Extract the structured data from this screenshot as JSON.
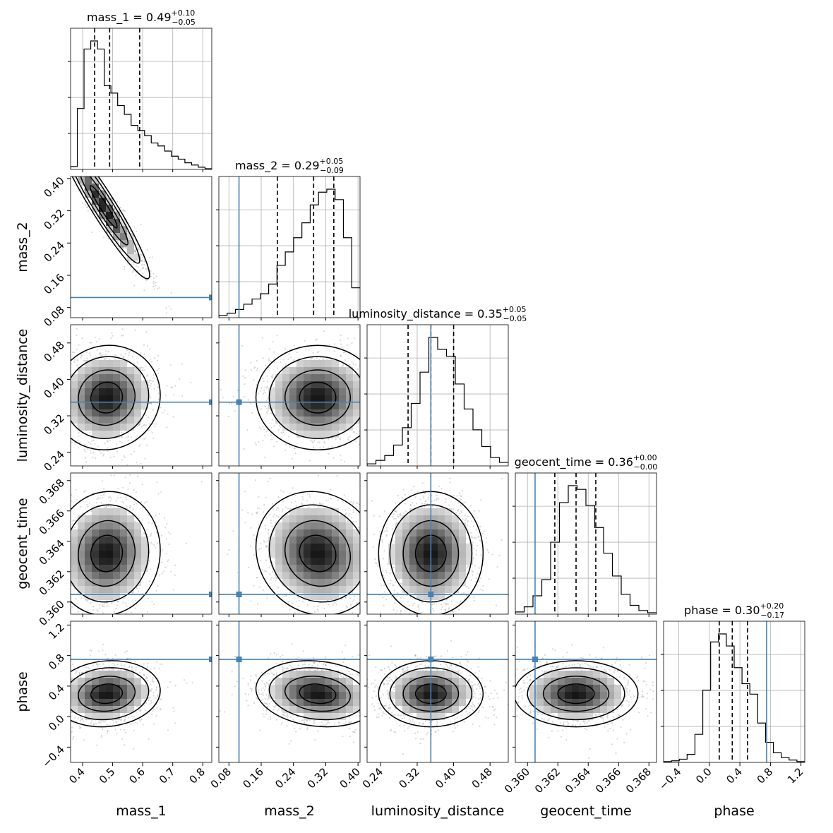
{
  "chart_data": {
    "type": "corner",
    "parameters": [
      {
        "name": "mass_1",
        "label": "mass_1",
        "range": [
          0.36,
          0.83
        ],
        "ticks": [
          "0.4",
          "0.5",
          "0.6",
          "0.7",
          "0.8"
        ],
        "tick_values": [
          0.4,
          0.5,
          0.6,
          0.7,
          0.8
        ],
        "title_main": "mass_1 = 0.49",
        "title_sup": "+0.10",
        "title_sub": "−0.05",
        "median": 0.49,
        "q_low": 0.44,
        "q_high": 0.59,
        "truth": null,
        "hist": [
          4,
          83,
          164,
          175,
          164,
          114,
          104,
          87,
          75,
          60,
          53,
          46,
          36,
          32,
          25,
          18,
          14,
          9,
          6,
          3,
          1
        ]
      },
      {
        "name": "mass_2",
        "label": "mass_2",
        "range": [
          0.055,
          0.405
        ],
        "ticks": [
          "0.08",
          "0.16",
          "0.24",
          "0.32",
          "0.40"
        ],
        "tick_values": [
          0.08,
          0.16,
          0.24,
          0.32,
          0.4
        ],
        "title_main": "mass_2 = 0.29",
        "title_sup": "+0.05",
        "title_sub": "−0.09",
        "median": 0.29,
        "q_low": 0.2,
        "q_high": 0.34,
        "truth": 0.105,
        "hist": [
          3,
          6,
          11,
          18,
          25,
          32,
          45,
          70,
          88,
          107,
          127,
          151,
          168,
          172,
          158,
          107,
          40
        ]
      },
      {
        "name": "luminosity_distance",
        "label": "luminosity_distance",
        "range": [
          0.21,
          0.52
        ],
        "ticks": [
          "0.24",
          "0.32",
          "0.40",
          "0.48"
        ],
        "tick_values": [
          0.24,
          0.32,
          0.4,
          0.48
        ],
        "title_main": "luminosity_distance = 0.35",
        "title_sup": "+0.05",
        "title_sub": "−0.05",
        "median": 0.35,
        "q_low": 0.3,
        "q_high": 0.4,
        "truth": 0.35,
        "hist": [
          3,
          8,
          15,
          30,
          55,
          90,
          135,
          185,
          168,
          158,
          118,
          82,
          52,
          28,
          12,
          5
        ]
      },
      {
        "name": "geocent_time",
        "label": "geocent_time",
        "range": [
          0.3592,
          0.3685
        ],
        "ticks": [
          "0.360",
          "0.362",
          "0.364",
          "0.366",
          "0.368"
        ],
        "tick_values": [
          0.36,
          0.362,
          0.364,
          0.366,
          0.368
        ],
        "title_main": "geocent_time = 0.36",
        "title_sup": "+0.00",
        "title_sub": "−0.00",
        "median": 0.3632,
        "q_low": 0.3618,
        "q_high": 0.3645,
        "truth": 0.3605,
        "hist": [
          3,
          10,
          25,
          47,
          98,
          152,
          175,
          170,
          148,
          118,
          83,
          52,
          27,
          12,
          5,
          2
        ]
      },
      {
        "name": "phase",
        "label": "phase",
        "range": [
          -0.6,
          1.25
        ],
        "ticks": [
          "−0.4",
          "0.0",
          "0.4",
          "0.8",
          "1.2"
        ],
        "tick_values": [
          -0.4,
          0.0,
          0.4,
          0.8,
          1.2
        ],
        "title_main": "phase = 0.30",
        "title_sup": "+0.20",
        "title_sub": "−0.17",
        "median": 0.3,
        "q_low": 0.13,
        "q_high": 0.5,
        "truth": 0.75,
        "hist": [
          1,
          2,
          4,
          10,
          35,
          90,
          150,
          160,
          145,
          118,
          98,
          85,
          49,
          25,
          12,
          6,
          3,
          1
        ]
      }
    ],
    "pairs": [
      {
        "x": 0,
        "y": 1,
        "mean": [
          0.47,
          0.33
        ],
        "sd": [
          0.06,
          0.07
        ],
        "rho": -0.95
      },
      {
        "x": 0,
        "y": 2,
        "mean": [
          0.48,
          0.36
        ],
        "sd": [
          0.07,
          0.045
        ],
        "rho": 0.05
      },
      {
        "x": 0,
        "y": 3,
        "mean": [
          0.48,
          0.3632
        ],
        "sd": [
          0.07,
          0.0016
        ],
        "rho": 0.05
      },
      {
        "x": 0,
        "y": 4,
        "mean": [
          0.48,
          0.3
        ],
        "sd": [
          0.07,
          0.17
        ],
        "rho": 0.1
      },
      {
        "x": 1,
        "y": 2,
        "mean": [
          0.3,
          0.36
        ],
        "sd": [
          0.06,
          0.045
        ],
        "rho": 0.0
      },
      {
        "x": 1,
        "y": 3,
        "mean": [
          0.3,
          0.3632
        ],
        "sd": [
          0.06,
          0.0016
        ],
        "rho": -0.1
      },
      {
        "x": 1,
        "y": 4,
        "mean": [
          0.3,
          0.3
        ],
        "sd": [
          0.06,
          0.17
        ],
        "rho": -0.15
      },
      {
        "x": 2,
        "y": 3,
        "mean": [
          0.35,
          0.3632
        ],
        "sd": [
          0.045,
          0.0016
        ],
        "rho": 0.0
      },
      {
        "x": 2,
        "y": 4,
        "mean": [
          0.35,
          0.3
        ],
        "sd": [
          0.045,
          0.17
        ],
        "rho": 0.0
      },
      {
        "x": 3,
        "y": 4,
        "mean": [
          0.3632,
          0.3
        ],
        "sd": [
          0.0016,
          0.17
        ],
        "rho": 0.0
      }
    ],
    "colors": {
      "truth": "#4682b4",
      "hist": "#000000",
      "grid": "#b0b0b0",
      "scatter": "#7f7f7f"
    }
  }
}
